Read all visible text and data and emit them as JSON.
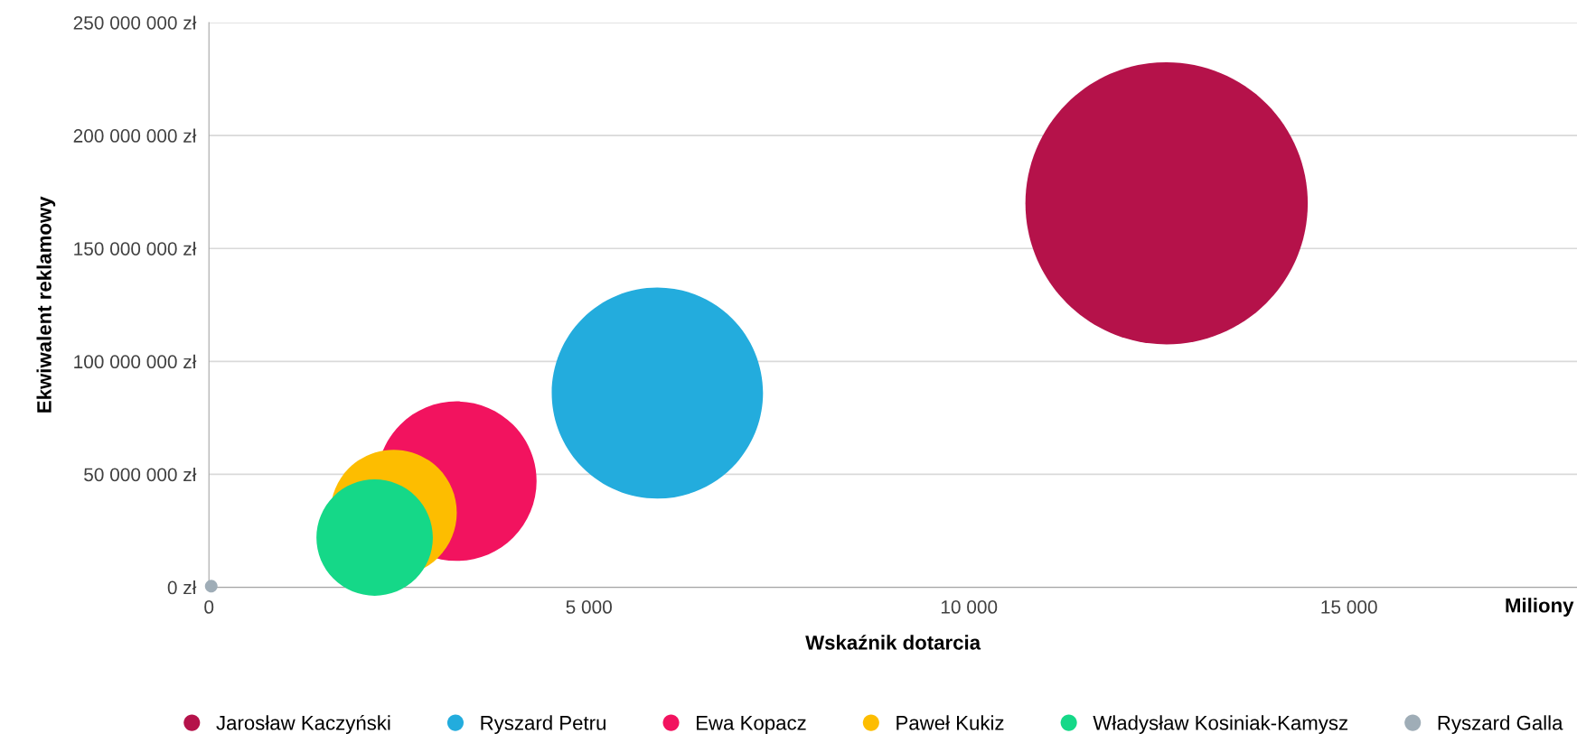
{
  "chart_data": {
    "type": "bubble",
    "xlabel": "Wskaźnik dotarcia",
    "ylabel": "Ekwiwalent reklamowy",
    "annotations": [
      "Miliony"
    ],
    "series": [
      {
        "name": "Jarosław Kaczyński",
        "color": "#b5124a",
        "x": [
          12600
        ],
        "values": [
          170000000
        ],
        "sizes": [
          1
        ]
      },
      {
        "name": "Ryszard Petru",
        "color": "#23acdd",
        "x": [
          5900
        ],
        "values": [
          86000000
        ],
        "sizes": [
          0.56
        ]
      },
      {
        "name": "Ewa Kopacz",
        "color": "#f2135f",
        "x": [
          3260
        ],
        "values": [
          47000000
        ],
        "sizes": [
          0.32
        ]
      },
      {
        "name": "Paweł Kukiz",
        "color": "#fdbd00",
        "x": [
          2430
        ],
        "values": [
          33000000
        ],
        "sizes": [
          0.2
        ]
      },
      {
        "name": "Władysław Kosiniak-Kamysz",
        "color": "#15d888",
        "x": [
          2180
        ],
        "values": [
          22000000
        ],
        "sizes": [
          0.17
        ]
      },
      {
        "name": "Ryszard Galla",
        "color": "#9fadb7",
        "x": [
          30
        ],
        "values": [
          500000
        ],
        "sizes": [
          0.002
        ]
      }
    ],
    "xlim": [
      0,
      18000
    ],
    "ylim": [
      0,
      250000000
    ],
    "xticks": [
      0,
      {
        "value": 5000,
        "label": "5 000"
      },
      {
        "value": 10000,
        "label": "10 000"
      },
      {
        "value": 15000,
        "label": "15 000"
      }
    ],
    "yticks": [
      {
        "value": 0,
        "label": "0 zł"
      },
      {
        "value": 50000000,
        "label": "50 000 000 zł"
      },
      {
        "value": 100000000,
        "label": "100 000 000 zł"
      },
      {
        "value": 150000000,
        "label": "150 000 000 zł"
      },
      {
        "value": 200000000,
        "label": "200 000 000 zł"
      },
      {
        "value": 250000000,
        "label": "250 000 000 zł"
      }
    ],
    "grid": "y",
    "legend": "bottom"
  }
}
